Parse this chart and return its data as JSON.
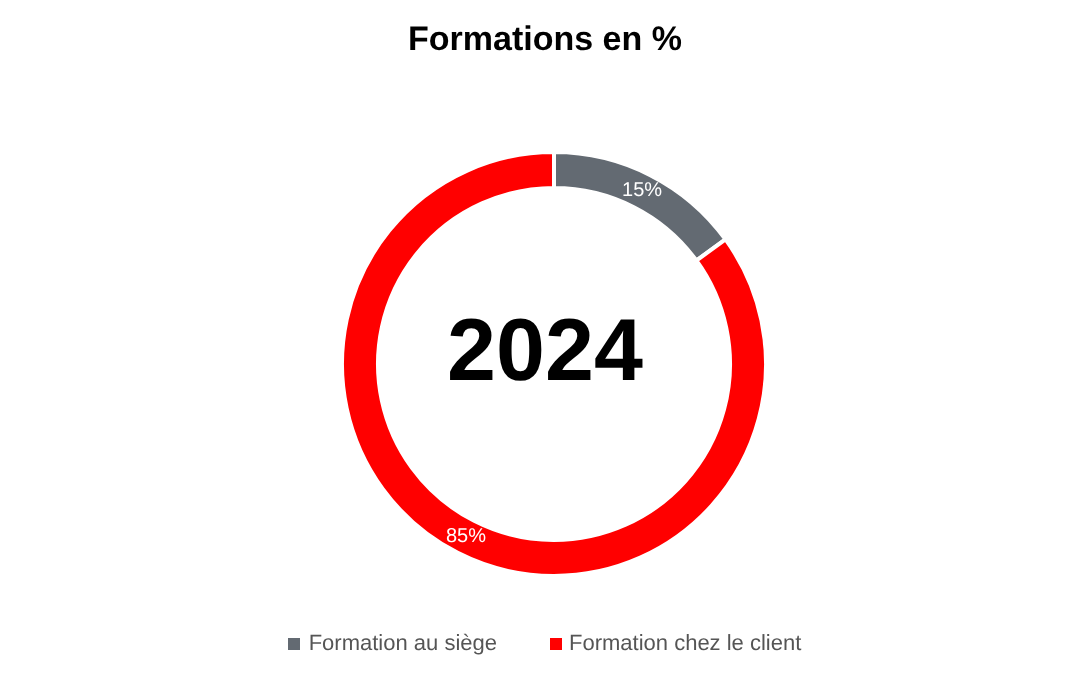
{
  "chart_data": {
    "type": "donut",
    "title": "Formations en %",
    "categories": [
      "Formation au siège",
      "Formation chez le client"
    ],
    "values": [
      15,
      85
    ],
    "colors": [
      "#636a72",
      "#ff0000"
    ],
    "value_labels": [
      "15%",
      "85%"
    ],
    "annotations": [
      "2024"
    ],
    "legend": "bottom"
  }
}
